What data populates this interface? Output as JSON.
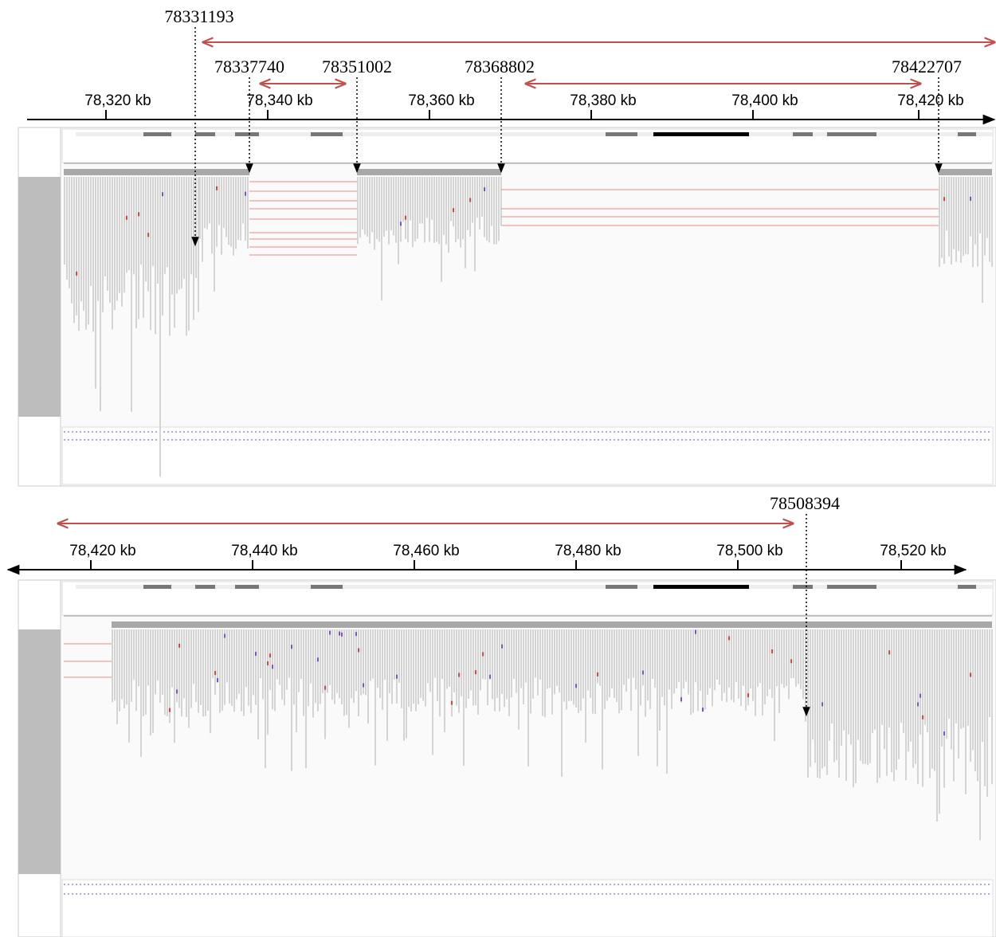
{
  "panels": [
    {
      "axis_labels": [
        "78,320 kb",
        "78,340 kb",
        "78,360 kb",
        "78,380 kb",
        "78,400 kb",
        "78,420 kb"
      ],
      "breakpoints": [
        "78331193",
        "78337740",
        "78351002",
        "78368802",
        "78422707"
      ]
    },
    {
      "axis_labels": [
        "78,420 kb",
        "78,440 kb",
        "78,460 kb",
        "78,480 kb",
        "78,500 kb",
        "78,520 kb"
      ],
      "breakpoints": [
        "78508394"
      ]
    }
  ]
}
